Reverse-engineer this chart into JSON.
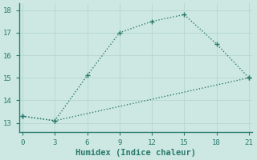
{
  "line1_x": [
    0,
    3,
    6,
    9,
    12,
    15,
    18,
    21
  ],
  "line1_y": [
    13.3,
    13.1,
    15.1,
    17.0,
    17.5,
    17.8,
    16.5,
    15.0
  ],
  "line2_x": [
    0,
    3,
    21
  ],
  "line2_y": [
    13.3,
    13.1,
    15.0
  ],
  "color": "#2a7a6e",
  "xlabel": "Humidex (Indice chaleur)",
  "xlim": [
    -0.3,
    21.3
  ],
  "ylim": [
    12.6,
    18.3
  ],
  "xticks": [
    0,
    3,
    6,
    9,
    12,
    15,
    18,
    21
  ],
  "yticks": [
    13,
    14,
    15,
    16,
    17,
    18
  ],
  "bg_color": "#cde8e2",
  "grid_color": "#b8d8d2",
  "markersize": 3.0,
  "linewidth": 1.0,
  "tick_fontsize": 6.5,
  "xlabel_fontsize": 7.5,
  "spine_color": "#2a7a6e"
}
